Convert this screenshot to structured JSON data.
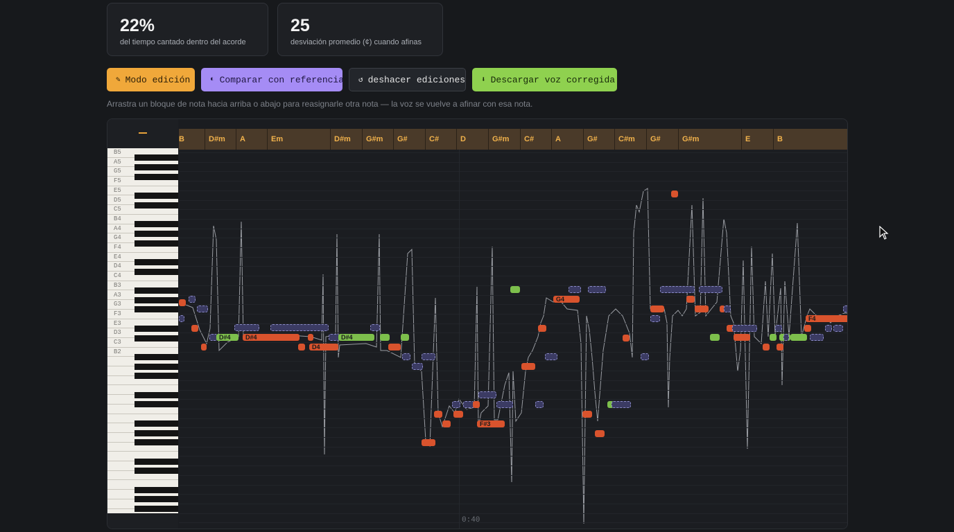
{
  "stats": [
    {
      "value": "22%",
      "label": "del tiempo cantado dentro del acorde"
    },
    {
      "value": "25",
      "label": "desviación promedio (¢) cuando afinas"
    }
  ],
  "toolbar": {
    "edit_mode": {
      "icon": "✎",
      "label": "Modo edición",
      "icon_name": "pencil-icon"
    },
    "compare": {
      "icon": "◐",
      "label": "Comparar con referencia",
      "icon_name": "half-circle-icon"
    },
    "undo": {
      "icon": "↺",
      "label": "deshacer ediciones",
      "icon_name": "undo-icon"
    },
    "download": {
      "icon": "⬇",
      "label": "Descargar voz corregida",
      "icon_name": "download-icon"
    }
  },
  "hint": "Arrastra un bloque de nota hacia arriba o abajo para reasignarle otra nota — la voz se vuelve a afinar con esa nota.",
  "colors": {
    "edit_mode": "#f0a83a",
    "compare": "#a58cf5",
    "download": "#8fd14f",
    "in_chord": "#7dbf4c",
    "off_chord": "#d9532d",
    "reference": "#3b3b63",
    "chord_text": "#f1b24c"
  },
  "piano_labels": [
    "B5",
    "A5",
    "G5",
    "F5",
    "E5",
    "D5",
    "C5",
    "B4",
    "A4",
    "G4",
    "F4",
    "E4",
    "D4",
    "C4",
    "B3",
    "A3",
    "G3",
    "F3",
    "E3",
    "D3",
    "C3",
    "B2"
  ],
  "chords": [
    "B",
    "D#m",
    "A",
    "Em",
    "D#m",
    "G#m",
    "G#",
    "C#",
    "D",
    "G#m",
    "C#",
    "A",
    "G#",
    "C#m",
    "G#",
    "G#m",
    "E",
    "B"
  ],
  "note_labels": {
    "d4a": "D#4",
    "d4b": "D#4",
    "d4c": "D4",
    "d4d": "D#4",
    "g4": "G4",
    "f3": "F#3",
    "f4": "F4"
  },
  "time_label": "0:40",
  "collapse_label": "—"
}
